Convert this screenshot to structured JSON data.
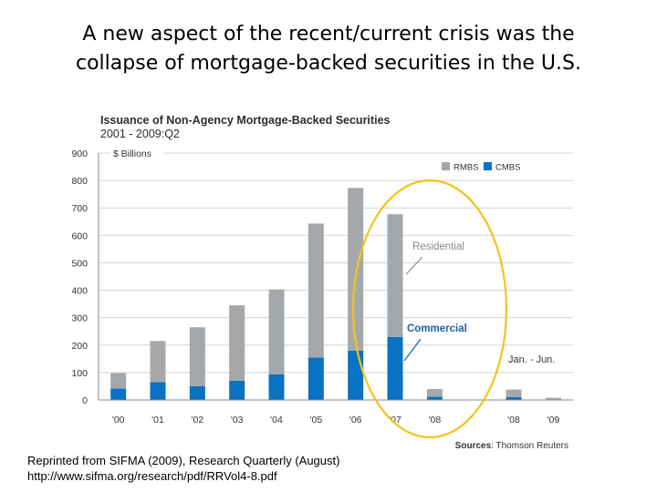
{
  "slide": {
    "title_line1": "A new aspect of the recent/current crisis was the",
    "title_line2": "collapse of mortgage-backed securities in the U.S."
  },
  "footnote": {
    "line1": "Reprinted from SIFMA (2009), Research Quarterly (August)",
    "line2": "http://www.sifma.org/research/pdf/RRVol4-8.pdf"
  },
  "colors": {
    "rmbs": "#a5a8ab",
    "cmbs": "#0a72c2",
    "highlight_ellipse": "#f4c21d",
    "commercial_label": "#1f5f9e",
    "residential_label": "#8a8a8a",
    "grid": "#d4d4d4"
  },
  "chart_data": {
    "type": "bar",
    "stacked": true,
    "title": "Issuance of Non-Agency Mortgage-Backed Securities",
    "subtitle": "2001 - 2009:Q2",
    "unit_label": "$ Billions",
    "categories": [
      "'00",
      "'01",
      "'02",
      "'03",
      "'04",
      "'05",
      "'06",
      "'07",
      "'08",
      "",
      "'08",
      "'09"
    ],
    "series": [
      {
        "name": "CMBS",
        "values": [
          42,
          65,
          50,
          70,
          93,
          155,
          180,
          230,
          12,
          0,
          10,
          2
        ]
      },
      {
        "name": "RMBS",
        "values": [
          56,
          150,
          215,
          275,
          310,
          488,
          593,
          447,
          28,
          0,
          28,
          6
        ]
      }
    ],
    "ylim": [
      0,
      900
    ],
    "yticks": [
      0,
      100,
      200,
      300,
      400,
      500,
      600,
      700,
      800,
      900
    ],
    "grid": true,
    "legend_position": "top-right",
    "legend_items": [
      {
        "series": "RMBS",
        "label": "RMBS"
      },
      {
        "series": "CMBS",
        "label": "CMBS"
      }
    ],
    "annotations": {
      "residential": "Residential",
      "commercial": "Commercial",
      "period_note": "Jan. - Jun."
    },
    "source_prefix": "Sources",
    "source_text": ": Thomson Reuters"
  }
}
